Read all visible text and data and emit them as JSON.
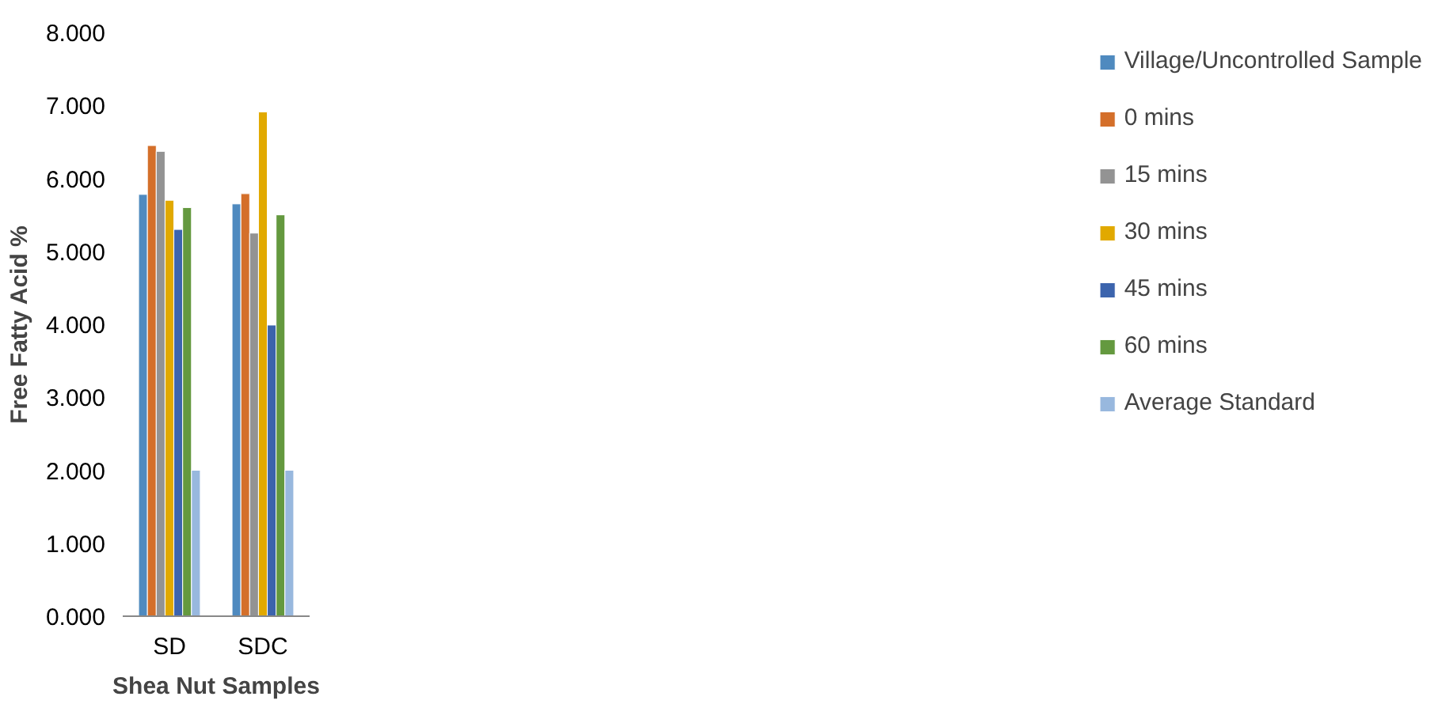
{
  "chart_data": {
    "type": "bar",
    "xlabel": "Shea Nut Samples",
    "ylabel": "Free Fatty Acid %",
    "categories": [
      "SD",
      "SDC"
    ],
    "series": [
      {
        "name": "Village/Uncontrolled Sample",
        "color": "#4f8abf",
        "values": [
          5.78,
          5.65
        ]
      },
      {
        "name": "0 mins",
        "color": "#d46f2a",
        "values": [
          6.45,
          5.79
        ]
      },
      {
        "name": "15 mins",
        "color": "#939393",
        "values": [
          6.37,
          5.25
        ]
      },
      {
        "name": "30 mins",
        "color": "#e1a900",
        "values": [
          5.7,
          6.91
        ]
      },
      {
        "name": "45 mins",
        "color": "#3c64ad",
        "values": [
          5.3,
          3.99
        ]
      },
      {
        "name": "60 mins",
        "color": "#64993f",
        "values": [
          5.6,
          5.5
        ]
      },
      {
        "name": "Average Standard",
        "color": "#98b8de",
        "values": [
          2.0,
          2.0
        ]
      }
    ],
    "ylim": [
      0,
      8
    ],
    "yticks": [
      {
        "value": 0,
        "label": "0.000"
      },
      {
        "value": 1,
        "label": "1.000"
      },
      {
        "value": 2,
        "label": "2.000"
      },
      {
        "value": 3,
        "label": "3.000"
      },
      {
        "value": 4,
        "label": "4.000"
      },
      {
        "value": 5,
        "label": "5.000"
      },
      {
        "value": 6,
        "label": "6.000"
      },
      {
        "value": 7,
        "label": "7.000"
      },
      {
        "value": 8,
        "label": "8.000"
      }
    ],
    "grid": false,
    "legend": "right"
  }
}
